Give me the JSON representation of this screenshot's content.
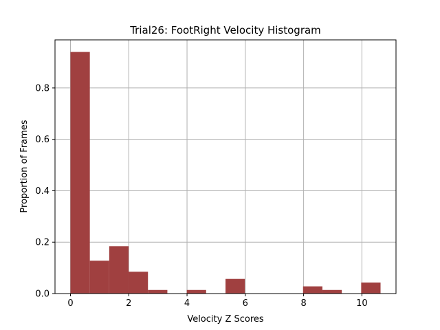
{
  "chart_data": {
    "type": "bar",
    "title": "Trial26: FootRight Velocity Histogram",
    "xlabel": "Velocity Z Scores",
    "ylabel": "Proportion of Frames",
    "xlim": [
      -0.53,
      11.17
    ],
    "ylim": [
      0,
      0.987
    ],
    "xticks": [
      0,
      2,
      4,
      6,
      8,
      10
    ],
    "yticks": [
      0.0,
      0.2,
      0.4,
      0.6,
      0.8
    ],
    "bin_edges": [
      0,
      0.665,
      1.33,
      1.995,
      2.66,
      3.325,
      3.99,
      4.655,
      5.32,
      5.985,
      6.65,
      7.315,
      7.98,
      8.645,
      9.31,
      9.975,
      10.64
    ],
    "values": [
      0.94,
      0.128,
      0.184,
      0.085,
      0.014,
      0.0,
      0.014,
      0.0,
      0.057,
      0.0,
      0.0,
      0.0,
      0.028,
      0.014,
      0.0,
      0.043
    ],
    "bar_color": "#a04040",
    "grid": true
  }
}
